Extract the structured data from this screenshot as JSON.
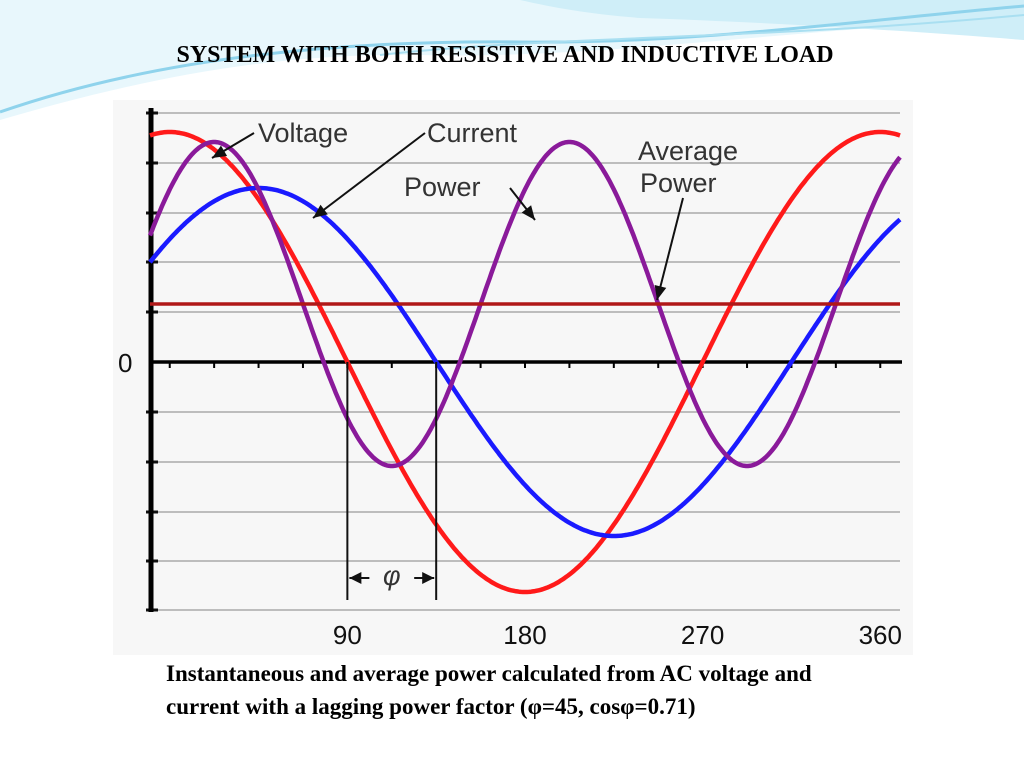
{
  "slide": {
    "title": "SYSTEM WITH BOTH RESISTIVE AND INDUCTIVE LOAD",
    "caption": "Instantaneous and average power calculated from AC voltage and current with a lagging power factor (φ=45, cosφ=0.71)",
    "decoration_colors": [
      "#8fd3ec",
      "#cfeef8",
      "#e8f7fc"
    ]
  },
  "chart_data": {
    "type": "line",
    "x_ticks": [
      "90",
      "180",
      "270",
      "360"
    ],
    "x_tick_values": [
      90,
      180,
      270,
      360
    ],
    "y_zero_label": "0",
    "xlim": [
      -10,
      370
    ],
    "ylim": [
      -1.15,
      1.15
    ],
    "grid": true,
    "annotations": {
      "voltage": "Voltage",
      "current": "Current",
      "power": "Power",
      "average_power_line1": "Average",
      "average_power_line2": "Power",
      "phase": "φ"
    },
    "series": [
      {
        "key": "voltage",
        "color": "#ff1a1a",
        "amplitude": 1.15,
        "phase_deg": 0,
        "offset": 0
      },
      {
        "key": "current",
        "color": "#1a1aff",
        "amplitude": 0.87,
        "phase_deg": 45,
        "offset": 0
      },
      {
        "key": "power",
        "color": "#8a1a9a",
        "amplitude": 0.81,
        "phase_deg": 22.5,
        "offset": 0.29,
        "frequency": 2
      },
      {
        "key": "average_power",
        "color": "#b01818",
        "value": 0.29
      }
    ],
    "phase_marker": [
      90,
      135
    ]
  }
}
